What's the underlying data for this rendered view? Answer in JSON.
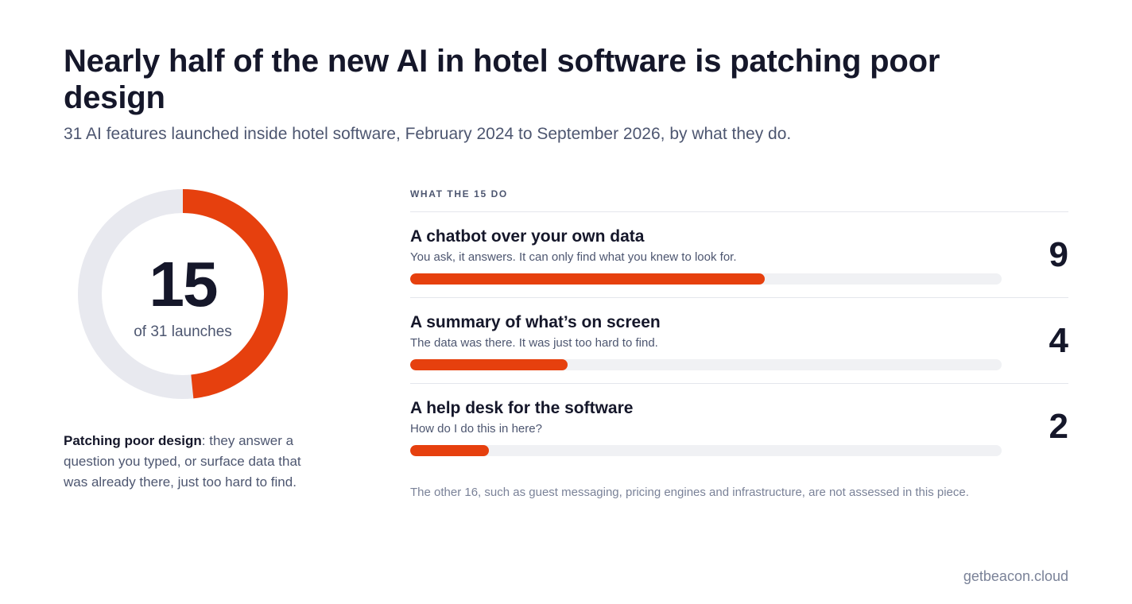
{
  "title": "Nearly half of the new AI in hotel software is patching poor design",
  "subtitle": "31 AI features launched inside hotel software, February 2024 to September 2026, by what they do.",
  "donut": {
    "value_text": "15",
    "label": "of 31 launches"
  },
  "note": {
    "bold": "Patching poor design",
    "text": ": they answer a question you typed, or surface data that was already there, just too hard to find."
  },
  "breakdown": {
    "section_label": "WHAT THE 15 DO",
    "rows": [
      {
        "title": "A chatbot over your own data",
        "description": "You ask, it answers. It can only find what you knew to look for.",
        "count_text": "9"
      },
      {
        "title": "A summary of what’s on screen",
        "description": "The data was there. It was just too hard to find.",
        "count_text": "4"
      },
      {
        "title": "A help desk for the software",
        "description": "How do I do this in here?",
        "count_text": "2"
      }
    ]
  },
  "footnote": "The other 16, such as guest messaging, pricing engines and infrastructure, are not assessed in this piece.",
  "source": "getbeacon.cloud",
  "colors": {
    "accent": "#e6400e",
    "track": "#f0f1f4",
    "donut_rest": "#e8e9ef",
    "ink": "#15172a",
    "muted": "#4d5670"
  },
  "chart_data": [
    {
      "type": "pie",
      "variant": "donut",
      "total": 31,
      "values": [
        15,
        16
      ],
      "center_value": "15",
      "center_label": "of 31 launches"
    },
    {
      "type": "bar",
      "orientation": "horizontal",
      "title": "WHAT THE 15 DO",
      "categories": [
        "A chatbot over your own data",
        "A summary of what’s on screen",
        "A help desk for the software"
      ],
      "values": [
        9,
        4,
        2
      ],
      "xlim": [
        0,
        15
      ]
    }
  ]
}
